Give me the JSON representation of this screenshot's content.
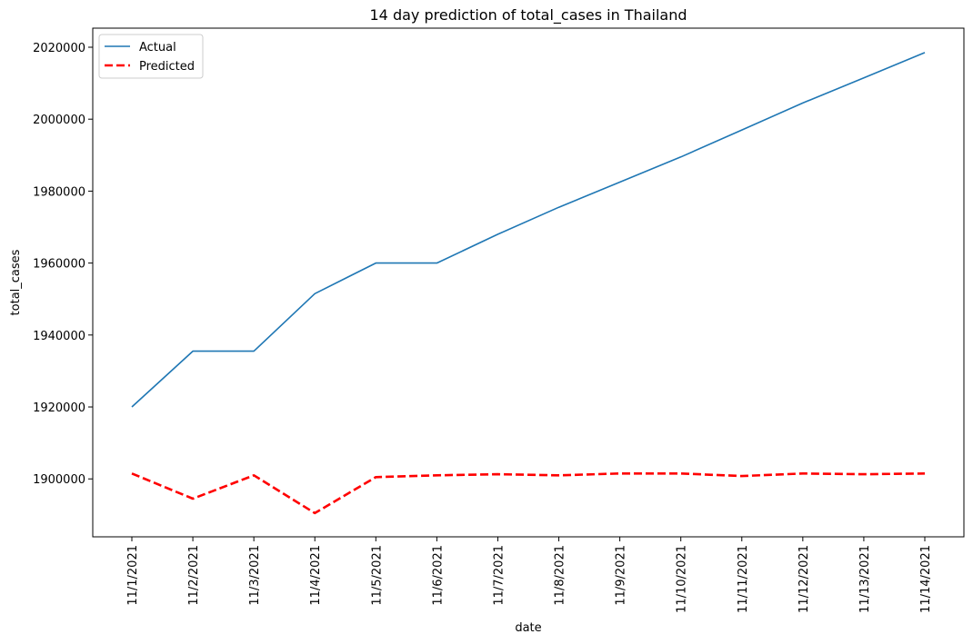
{
  "chart_data": {
    "type": "line",
    "title": "14 day prediction of total_cases in Thailand",
    "xlabel": "date",
    "ylabel": "total_cases",
    "categories": [
      "11/1/2021",
      "11/2/2021",
      "11/3/2021",
      "11/4/2021",
      "11/5/2021",
      "11/6/2021",
      "11/7/2021",
      "11/8/2021",
      "11/9/2021",
      "11/10/2021",
      "11/11/2021",
      "11/12/2021",
      "11/13/2021",
      "11/14/2021"
    ],
    "series": [
      {
        "name": "Actual",
        "color": "#1f77b4",
        "style": "solid",
        "values": [
          1920000,
          1935500,
          1935500,
          1951500,
          1960000,
          1960000,
          1968000,
          1975500,
          1982500,
          1989500,
          1997000,
          2004500,
          2011500,
          2018500
        ]
      },
      {
        "name": "Predicted",
        "color": "#ff0000",
        "style": "dashed",
        "values": [
          1901500,
          1894500,
          1901000,
          1890500,
          1900500,
          1901000,
          1901300,
          1901000,
          1901500,
          1901500,
          1900800,
          1901500,
          1901300,
          1901500
        ]
      }
    ],
    "yticks": [
      1900000,
      1920000,
      1940000,
      1960000,
      1980000,
      2000000,
      2020000
    ],
    "ylim": [
      1883900,
      2025300
    ],
    "grid": false,
    "legend_position": "top-left"
  }
}
